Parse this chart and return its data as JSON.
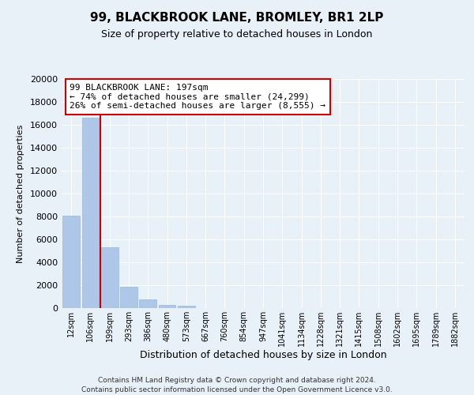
{
  "title": "99, BLACKBROOK LANE, BROMLEY, BR1 2LP",
  "subtitle": "Size of property relative to detached houses in London",
  "xlabel": "Distribution of detached houses by size in London",
  "ylabel": "Number of detached properties",
  "bar_labels": [
    "12sqm",
    "106sqm",
    "199sqm",
    "293sqm",
    "386sqm",
    "480sqm",
    "573sqm",
    "667sqm",
    "760sqm",
    "854sqm",
    "947sqm",
    "1041sqm",
    "1134sqm",
    "1228sqm",
    "1321sqm",
    "1415sqm",
    "1508sqm",
    "1602sqm",
    "1695sqm",
    "1789sqm",
    "1882sqm"
  ],
  "bar_values": [
    8100,
    16600,
    5300,
    1850,
    780,
    310,
    230,
    0,
    0,
    0,
    0,
    0,
    0,
    0,
    0,
    0,
    0,
    0,
    0,
    0,
    0
  ],
  "bar_color": "#aec6e8",
  "bar_edge_color": "#9ab8d8",
  "vline_x": 1.5,
  "vline_color": "#cc0000",
  "ylim": [
    0,
    20000
  ],
  "yticks": [
    0,
    2000,
    4000,
    6000,
    8000,
    10000,
    12000,
    14000,
    16000,
    18000,
    20000
  ],
  "annotation_title": "99 BLACKBROOK LANE: 197sqm",
  "annotation_line1": "← 74% of detached houses are smaller (24,299)",
  "annotation_line2": "26% of semi-detached houses are larger (8,555) →",
  "annotation_box_color": "#ffffff",
  "annotation_box_edge": "#cc0000",
  "bg_color": "#e8f0f8",
  "plot_bg_color": "#e8f0f8",
  "grid_color": "#ffffff",
  "footer_line1": "Contains HM Land Registry data © Crown copyright and database right 2024.",
  "footer_line2": "Contains public sector information licensed under the Open Government Licence v3.0."
}
